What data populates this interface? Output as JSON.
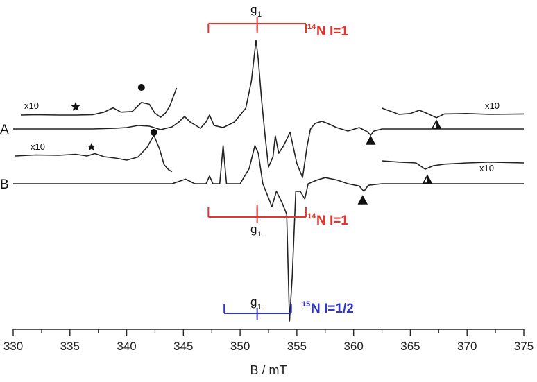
{
  "chart_data": {
    "type": "line",
    "title": "",
    "xlabel": "B / mT",
    "ylabel": "",
    "xlim": [
      330,
      375
    ],
    "x_ticks": [
      330,
      335,
      340,
      345,
      350,
      355,
      360,
      365,
      370,
      375
    ],
    "grid": false,
    "series": [
      {
        "name": "A",
        "x": [
          330,
          337,
          339,
          340,
          341,
          342,
          343,
          344,
          344.6,
          345.1,
          345.6,
          346.5,
          347.0,
          347.3,
          347.7,
          348.5,
          349.5,
          350.5,
          351.0,
          351.4,
          351.6,
          351.9,
          352.2,
          352.5,
          352.9,
          353.1,
          353.4,
          353.8,
          354.4,
          355.0,
          355.5,
          355.9,
          356.2,
          356.6,
          357.2,
          357.7,
          358.5,
          359.5,
          360.5,
          361.2,
          361.5,
          361.8,
          362.5,
          364,
          367,
          370,
          375
        ],
        "y": [
          0,
          0,
          0.1,
          0.2,
          0.5,
          0.4,
          -0.1,
          0.3,
          1.0,
          1.8,
          1.0,
          0.1,
          1.0,
          2.0,
          0.5,
          0.2,
          1.0,
          3.0,
          7.0,
          12.8,
          10.0,
          4.0,
          -1.0,
          -5.5,
          -4.0,
          -1.0,
          -3.5,
          -2.5,
          -0.5,
          -5.0,
          -7.0,
          -2.5,
          0.0,
          0.8,
          1.1,
          0.8,
          0.2,
          -0.3,
          0.2,
          -0.4,
          -0.9,
          -0.3,
          0.0,
          0.0,
          0.0,
          0.0,
          0.0
        ]
      },
      {
        "name": "B",
        "x": [
          330,
          341,
          343,
          344,
          345.2,
          346,
          347.0,
          347.3,
          347.6,
          348.2,
          348.5,
          348.8,
          349.2,
          350.0,
          350.8,
          351.3,
          351.6,
          352.0,
          352.4,
          352.8,
          353.2,
          353.7,
          354.1,
          354.35,
          354.6,
          354.9,
          355.3,
          355.7,
          356.0,
          356.8,
          357.5,
          358.5,
          359.5,
          360.5,
          360.9,
          361.3,
          362.5,
          365,
          370,
          375
        ],
        "y": [
          0,
          0,
          0,
          0,
          0.6,
          0,
          0,
          1.0,
          0,
          0,
          5.0,
          0,
          0,
          0,
          2.0,
          5.0,
          4.0,
          0,
          -1.5,
          -3.0,
          -1.0,
          -2.5,
          -4.0,
          -18.0,
          -12.0,
          -1.0,
          -1.0,
          -2.0,
          0.0,
          0.5,
          0.8,
          0.5,
          0.0,
          -0.3,
          -1.0,
          -0.2,
          0.0,
          0.0,
          0.0,
          0.0
        ]
      },
      {
        "name": "A x10 left",
        "x": [
          330,
          332,
          334,
          335.5,
          337,
          338.0,
          338.8,
          339.5,
          340.5,
          341.3,
          342.0,
          342.5,
          343.0,
          343.4,
          343.8,
          344.1,
          344.4
        ],
        "y": [
          0,
          0.1,
          0.0,
          0.0,
          0.1,
          0.8,
          2.0,
          0.8,
          1.0,
          3.5,
          3.0,
          0.5,
          -0.6,
          0.5,
          2.5,
          5.0,
          7.5
        ]
      },
      {
        "name": "A x10 right",
        "x": [
          362.5,
          364,
          365,
          365.8,
          366.5,
          367.3,
          368,
          370,
          372,
          375
        ],
        "y": [
          1.5,
          0.0,
          0.2,
          1.0,
          0.2,
          -0.8,
          0.1,
          0.2,
          0.0,
          0.1
        ]
      },
      {
        "name": "B x10 left",
        "x": [
          330,
          332,
          334,
          335.5,
          336.5,
          337.2,
          338,
          339,
          340,
          341,
          341.8,
          342.4,
          342.9,
          343.3,
          343.7,
          344
        ],
        "y": [
          0,
          0.3,
          0.2,
          0.5,
          0.0,
          0.7,
          -0.2,
          -0.6,
          -1.2,
          -0.3,
          2.5,
          6.0,
          2.0,
          -2.5,
          -4.0,
          -4.5
        ]
      },
      {
        "name": "B x10 right",
        "x": [
          362.5,
          364,
          365.5,
          366.3,
          367,
          368,
          370,
          372,
          375
        ],
        "y": [
          0.5,
          0.2,
          0.0,
          -1.5,
          -0.7,
          -0.3,
          0.0,
          0.2,
          0.0
        ]
      }
    ],
    "text_labels": {
      "trace_a": "A",
      "trace_b": "B",
      "scale_factor": "x10",
      "g1": "g",
      "g1_sub": "1",
      "iso14_mass": "14",
      "iso14_rest": "N I=1",
      "iso15_mass": "15",
      "iso15_rest": "N I=1/2"
    },
    "markers": {
      "star_left_A": 335.5,
      "dot_A": 341.3,
      "triangle_A": 361.5,
      "triangle_outline_A": 367.3,
      "star_left_B": 336.9,
      "dot_B": 342.4,
      "triangle_B": 360.8,
      "triangle_outline_B": 366.5
    },
    "hyperfine_patterns": [
      {
        "isotope": "14N",
        "nuclear_spin": "I=1",
        "position": "top",
        "g1_field": 351.5,
        "lines": [
          347.2,
          351.5,
          355.8
        ],
        "color": "#e8342e"
      },
      {
        "isotope": "14N",
        "nuclear_spin": "I=1",
        "position": "middle",
        "g1_field": 351.5,
        "lines": [
          347.2,
          351.5,
          355.8
        ],
        "color": "#e8342e"
      },
      {
        "isotope": "15N",
        "nuclear_spin": "I=1/2",
        "position": "bottom",
        "g1_field": 351.5,
        "lines": [
          348.6,
          354.5
        ],
        "color": "#2f36c8"
      }
    ],
    "colors": {
      "trace": "#222222",
      "n14": "#e8342e",
      "n15": "#2f36c8"
    }
  }
}
